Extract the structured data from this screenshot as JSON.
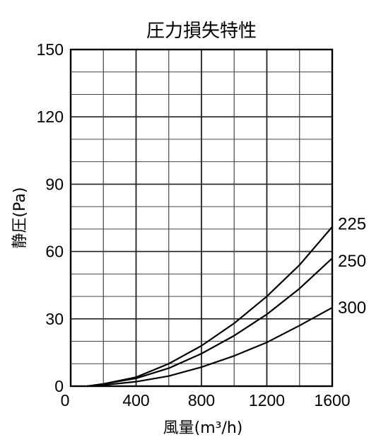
{
  "chart_data": {
    "type": "line",
    "title": "圧力損失特性",
    "xlabel": "風量(m³/h)",
    "ylabel": "静圧(Pa)",
    "xlim": [
      0,
      1600
    ],
    "ylim": [
      0,
      150
    ],
    "x_ticks": [
      0,
      400,
      800,
      1200,
      1600
    ],
    "y_ticks": [
      0,
      30,
      60,
      90,
      120,
      150
    ],
    "x_ticks_labels": [
      "0",
      "400",
      "800",
      "1200",
      "1600"
    ],
    "y_ticks_labels": [
      "0",
      "30",
      "60",
      "90",
      "120",
      "150"
    ],
    "grid": true,
    "legend": "direct labels at right end of curves",
    "series": [
      {
        "name": "225",
        "x": [
          100,
          200,
          400,
          600,
          800,
          1000,
          1200,
          1400,
          1600
        ],
        "y": [
          0,
          1,
          4,
          10,
          18,
          28,
          40,
          54,
          71
        ]
      },
      {
        "name": "250",
        "x": [
          100,
          200,
          400,
          600,
          800,
          1000,
          1200,
          1400,
          1600
        ],
        "y": [
          0,
          1,
          3.5,
          8,
          14.5,
          22.5,
          32,
          43.5,
          57
        ]
      },
      {
        "name": "300",
        "x": [
          100,
          200,
          400,
          600,
          800,
          1000,
          1200,
          1400,
          1600
        ],
        "y": [
          0,
          0.5,
          2,
          4.5,
          8.5,
          13.5,
          19.5,
          27,
          35
        ]
      }
    ]
  }
}
